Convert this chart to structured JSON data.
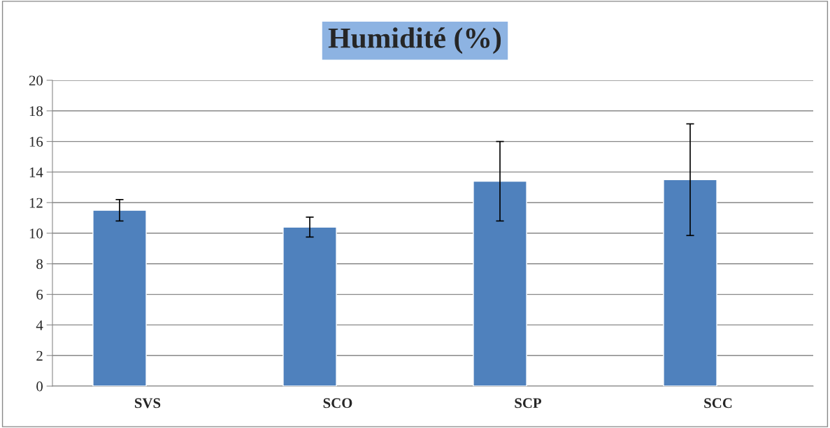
{
  "chart_data": {
    "type": "bar",
    "title": "Humidité (%)",
    "categories": [
      "SVS",
      "SCO",
      "SCP",
      "SCC"
    ],
    "values": [
      11.5,
      10.4,
      13.4,
      13.5
    ],
    "errors": [
      0.7,
      0.65,
      2.6,
      3.65
    ],
    "color": "#4f81bd",
    "ylim": [
      0,
      20
    ],
    "yticks": [
      0,
      2,
      4,
      6,
      8,
      10,
      12,
      14,
      16,
      18,
      20
    ],
    "grid": "y",
    "legend": false
  }
}
